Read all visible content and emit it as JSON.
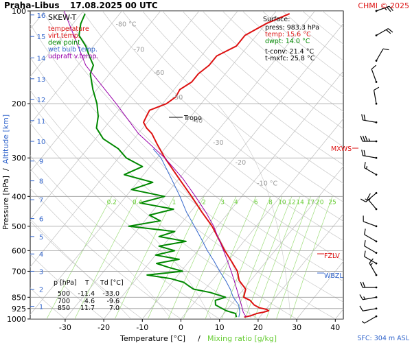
{
  "header": {
    "station": "Praha-Libus",
    "datetime": "17.08.2025 00 UTC",
    "credit": "CHMI © 2025"
  },
  "legend": {
    "title": "SKEW-T",
    "items": [
      {
        "label": "temperature",
        "color": "#dd1111"
      },
      {
        "label": "virt.temp.",
        "color": "#dd1111"
      },
      {
        "label": "dew point",
        "color": "#008800"
      },
      {
        "label": "wet bulb temp.",
        "color": "#3366cc"
      },
      {
        "label": "udpraft v.temp.",
        "color": "#9900aa"
      }
    ]
  },
  "surface": {
    "title": "Surface:",
    "press": "press: 983.3 hPa",
    "temp": "temp: 15.6 °C",
    "dwpt": "dwpt: 14.0 °C",
    "tconv": "t-conv: 21.4 °C",
    "tmxfc": "t-mxfc: 25.8 °C"
  },
  "table": {
    "headers": [
      "p [hPa]",
      "T",
      "Td [°C]"
    ],
    "rows": [
      [
        "500",
        "-11.4",
        "-33.0"
      ],
      [
        "700",
        "4.6",
        "-9.6"
      ],
      [
        "850",
        "11.7",
        "7.0"
      ]
    ]
  },
  "levels": {
    "tropo": "Tropo",
    "mxws": "MXWS",
    "fzlv": "FZLV",
    "wbzl": "WBZL"
  },
  "footer": {
    "sfc": "SFC: 304 m ASL"
  },
  "chart_data": {
    "type": "line",
    "xlabel": "Temperature [°C]",
    "xlabel_sep": "/",
    "xlabel2": "Mixing ratio [g/kg]",
    "ylabel": "Pressure [hPa]",
    "ylabel_sep": "/",
    "ylabel2": "Altitude [km]",
    "x_ticks": [
      -30,
      -20,
      -10,
      0,
      10,
      20,
      30,
      40
    ],
    "x_tick_labels": [
      "-30",
      "-20",
      "-10",
      "0",
      "10",
      "20",
      "30",
      "40"
    ],
    "xlim": [
      -37,
      42
    ],
    "p_ticks": [
      100,
      200,
      300,
      400,
      500,
      600,
      700,
      850,
      925,
      1000
    ],
    "p_tick_labels": [
      "100",
      "200",
      "300",
      "400",
      "500",
      "600",
      "700",
      "850",
      "925",
      "1000"
    ],
    "ylim": [
      1000,
      100
    ],
    "y_scale": "log",
    "altitude_km": [
      1,
      2,
      3,
      4,
      5,
      6,
      7,
      8,
      9,
      10,
      11,
      12,
      13,
      14,
      15,
      16
    ],
    "altitude_labels": [
      "1",
      "2",
      "3",
      "4",
      "5",
      "6",
      "7",
      "8",
      "9",
      "10",
      "11",
      "12",
      "13",
      "14",
      "15",
      "16"
    ],
    "altitude_p": [
      910,
      800,
      700,
      615,
      540,
      472,
      410,
      356,
      307,
      265,
      227,
      194,
      166,
      142,
      121,
      103
    ],
    "skew_isotherms": [
      {
        "label": "-80 °C",
        "t": -80,
        "p": 110
      },
      {
        "label": "-70",
        "t": -70,
        "p": 133
      },
      {
        "label": "-60",
        "t": -60,
        "p": 158
      },
      {
        "label": "-50",
        "t": -50,
        "p": 190
      },
      {
        "label": "-40",
        "t": -40,
        "p": 226
      },
      {
        "label": "-30",
        "t": -30,
        "p": 266
      },
      {
        "label": "-20",
        "t": -20,
        "p": 309
      },
      {
        "label": "-10 °C",
        "t": -10,
        "p": 361
      }
    ],
    "mixing_ratio_labels": [
      "0.2",
      "0.4",
      "1",
      "2",
      "3",
      "4",
      "6",
      "8",
      "10",
      "12",
      "14",
      "17",
      "20",
      "25"
    ],
    "mixing_ratio_values": [
      0.2,
      0.4,
      1,
      2,
      3,
      4,
      6,
      8,
      10,
      12,
      14,
      17,
      20,
      25
    ],
    "series": [
      {
        "name": "temperature",
        "color": "#dd1111",
        "points": [
          [
            986,
            16
          ],
          [
            975,
            17.5
          ],
          [
            960,
            18.5
          ],
          [
            950,
            20
          ],
          [
            940,
            21
          ],
          [
            930,
            20
          ],
          [
            920,
            18
          ],
          [
            900,
            16
          ],
          [
            870,
            14
          ],
          [
            850,
            11.7
          ],
          [
            800,
            10.5
          ],
          [
            750,
            7
          ],
          [
            700,
            4.6
          ],
          [
            650,
            1
          ],
          [
            600,
            -3
          ],
          [
            550,
            -7
          ],
          [
            500,
            -11.4
          ],
          [
            450,
            -17
          ],
          [
            400,
            -23
          ],
          [
            350,
            -30
          ],
          [
            300,
            -38
          ],
          [
            270,
            -43
          ],
          [
            250,
            -46.5
          ],
          [
            240,
            -49
          ],
          [
            230,
            -51
          ],
          [
            220,
            -51.5
          ],
          [
            210,
            -52
          ],
          [
            200,
            -49
          ],
          [
            190,
            -48
          ],
          [
            180,
            -48.5
          ],
          [
            170,
            -47
          ],
          [
            160,
            -47
          ],
          [
            150,
            -46
          ],
          [
            140,
            -46
          ],
          [
            130,
            -43
          ],
          [
            120,
            -43
          ],
          [
            110,
            -40
          ],
          [
            102,
            -36
          ]
        ]
      },
      {
        "name": "dew point",
        "color": "#008800",
        "points": [
          [
            986,
            14
          ],
          [
            960,
            13
          ],
          [
            940,
            10
          ],
          [
            920,
            8
          ],
          [
            900,
            6
          ],
          [
            870,
            5
          ],
          [
            850,
            7
          ],
          [
            820,
            2
          ],
          [
            800,
            -3
          ],
          [
            780,
            -5
          ],
          [
            760,
            -7
          ],
          [
            740,
            -11
          ],
          [
            720,
            -18
          ],
          [
            700,
            -9.6
          ],
          [
            680,
            -14
          ],
          [
            660,
            -18
          ],
          [
            640,
            -13
          ],
          [
            620,
            -20
          ],
          [
            600,
            -16
          ],
          [
            580,
            -21
          ],
          [
            560,
            -15
          ],
          [
            540,
            -23
          ],
          [
            520,
            -20
          ],
          [
            500,
            -33
          ],
          [
            480,
            -26
          ],
          [
            460,
            -30
          ],
          [
            440,
            -25
          ],
          [
            420,
            -35
          ],
          [
            400,
            -30
          ],
          [
            380,
            -40
          ],
          [
            360,
            -36
          ],
          [
            340,
            -45
          ],
          [
            320,
            -42
          ],
          [
            300,
            -48
          ],
          [
            280,
            -52
          ],
          [
            260,
            -58
          ],
          [
            240,
            -62
          ],
          [
            220,
            -64
          ],
          [
            200,
            -67
          ],
          [
            180,
            -71
          ],
          [
            160,
            -75
          ],
          [
            150,
            -76
          ],
          [
            140,
            -79
          ],
          [
            130,
            -82
          ],
          [
            120,
            -86
          ],
          [
            110,
            -88
          ],
          [
            102,
            -89
          ]
        ]
      },
      {
        "name": "wet bulb temp.",
        "color": "#3366cc",
        "points": [
          [
            986,
            14.6
          ],
          [
            950,
            13.8
          ],
          [
            900,
            12
          ],
          [
            850,
            9
          ],
          [
            800,
            6.5
          ],
          [
            750,
            3.5
          ],
          [
            700,
            0
          ],
          [
            650,
            -3.5
          ],
          [
            600,
            -7.5
          ],
          [
            550,
            -11.5
          ],
          [
            500,
            -16
          ],
          [
            450,
            -21
          ],
          [
            400,
            -26
          ],
          [
            350,
            -32
          ],
          [
            300,
            -39
          ],
          [
            280,
            -43
          ]
        ]
      },
      {
        "name": "udpraft v.temp.",
        "color": "#9900aa",
        "points": [
          [
            986,
            16.5
          ],
          [
            950,
            14.7
          ],
          [
            900,
            12.7
          ],
          [
            850,
            10.5
          ],
          [
            800,
            8.2
          ],
          [
            750,
            5.7
          ],
          [
            700,
            3
          ],
          [
            650,
            0
          ],
          [
            600,
            -3.3
          ],
          [
            550,
            -7
          ],
          [
            500,
            -11
          ],
          [
            450,
            -16
          ],
          [
            400,
            -22
          ],
          [
            350,
            -29
          ],
          [
            300,
            -38
          ],
          [
            250,
            -50
          ],
          [
            200,
            -62
          ],
          [
            150,
            -78
          ],
          [
            100,
            -95
          ]
        ]
      }
    ],
    "wind_barbs": [
      {
        "p": 100,
        "dir": 70,
        "kt": 25
      },
      {
        "p": 120,
        "dir": 60,
        "kt": 20
      },
      {
        "p": 145,
        "dir": 30,
        "kt": 10
      },
      {
        "p": 170,
        "dir": 340,
        "kt": 10
      },
      {
        "p": 200,
        "dir": 350,
        "kt": 10
      },
      {
        "p": 230,
        "dir": 280,
        "kt": 20
      },
      {
        "p": 265,
        "dir": 270,
        "kt": 35
      },
      {
        "p": 300,
        "dir": 280,
        "kt": 20
      },
      {
        "p": 340,
        "dir": 300,
        "kt": 15
      },
      {
        "p": 390,
        "dir": 230,
        "kt": 15
      },
      {
        "p": 440,
        "dir": 320,
        "kt": 15
      },
      {
        "p": 500,
        "dir": 290,
        "kt": 10
      },
      {
        "p": 560,
        "dir": 300,
        "kt": 10
      },
      {
        "p": 610,
        "dir": 300,
        "kt": 10
      },
      {
        "p": 660,
        "dir": 300,
        "kt": 10
      },
      {
        "p": 720,
        "dir": 330,
        "kt": 15
      },
      {
        "p": 790,
        "dir": 270,
        "kt": 20
      },
      {
        "p": 850,
        "dir": 260,
        "kt": 15
      },
      {
        "p": 925,
        "dir": 260,
        "kt": 10
      },
      {
        "p": 980,
        "dir": 240,
        "kt": 5
      }
    ]
  }
}
